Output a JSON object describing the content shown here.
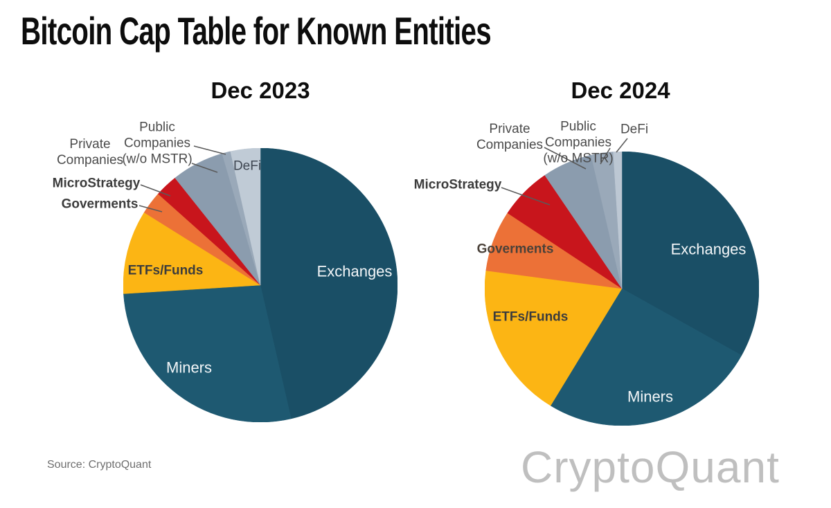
{
  "header": {
    "title": "Bitcoin Cap Table for Known Entities"
  },
  "footer": {
    "source": "Source: CryptoQuant",
    "watermark": "CryptoQuant"
  },
  "colors": {
    "background": "#ffffff",
    "title_text": "#0d0d0d",
    "label_text": "#4b4b4b",
    "bold_label_text": "#3c3c3c",
    "inside_label_text": "#f3f6f8",
    "source_text": "#6e6e6e",
    "watermark_text": "#bfbfbf",
    "leader_line": "#5a5a5a",
    "exchanges": "#1a4f66",
    "miners": "#1e5971",
    "etfs_funds": "#fcb514",
    "goverments": "#ec7137",
    "microstrategy": "#c8151c",
    "private_companies": "#8b9cae",
    "public_companies": "#9aa9b9",
    "defi": "#c0cbd6"
  },
  "chart_data": [
    {
      "type": "pie",
      "title": "Dec 2023",
      "direction": "clockwise",
      "start_angle_deg": 0,
      "values_are": "percent share of known-entity BTC holdings (estimated from slice angles)",
      "slices": [
        {
          "label": "Exchanges",
          "value": 46.4,
          "color": "#1a4f66",
          "label_placement": "inside"
        },
        {
          "label": "Miners",
          "value": 27.6,
          "color": "#1e5971",
          "label_placement": "inside"
        },
        {
          "label": "ETFs/Funds",
          "value": 9.9,
          "color": "#fcb514",
          "label_placement": "inside"
        },
        {
          "label": "Goverments",
          "value": 2.7,
          "color": "#ec7137",
          "label_placement": "outside-with-leader"
        },
        {
          "label": "MicroStrategy",
          "value": 2.7,
          "color": "#c8151c",
          "label_placement": "outside-with-leader"
        },
        {
          "label": "Private Companies",
          "value": 6.2,
          "color": "#8b9cae",
          "label_placement": "outside-with-leader"
        },
        {
          "label": "Public Companies (w/o MSTR)",
          "value": 1.0,
          "color": "#9aa9b9",
          "label_placement": "outside-with-leader"
        },
        {
          "label": "DeFi",
          "value": 3.5,
          "color": "#c0cbd6",
          "label_placement": "inside"
        }
      ]
    },
    {
      "type": "pie",
      "title": "Dec 2024",
      "direction": "clockwise",
      "start_angle_deg": 0,
      "values_are": "percent share of known-entity BTC holdings (estimated from slice angles)",
      "slices": [
        {
          "label": "Exchanges",
          "value": 33.1,
          "color": "#1a4f66",
          "label_placement": "inside"
        },
        {
          "label": "Miners",
          "value": 25.6,
          "color": "#1e5971",
          "label_placement": "inside"
        },
        {
          "label": "ETFs/Funds",
          "value": 18.4,
          "color": "#fcb514",
          "label_placement": "inside"
        },
        {
          "label": "Goverments",
          "value": 7.2,
          "color": "#ec7137",
          "label_placement": "inside"
        },
        {
          "label": "MicroStrategy",
          "value": 6.2,
          "color": "#c8151c",
          "label_placement": "outside-with-leader"
        },
        {
          "label": "Private Companies",
          "value": 5.9,
          "color": "#8b9cae",
          "label_placement": "outside-with-leader"
        },
        {
          "label": "Public Companies (w/o MSTR)",
          "value": 2.6,
          "color": "#9aa9b9",
          "label_placement": "outside-with-leader"
        },
        {
          "label": "DeFi",
          "value": 1.0,
          "color": "#bcc7d3",
          "label_placement": "outside-with-leader"
        }
      ]
    }
  ]
}
